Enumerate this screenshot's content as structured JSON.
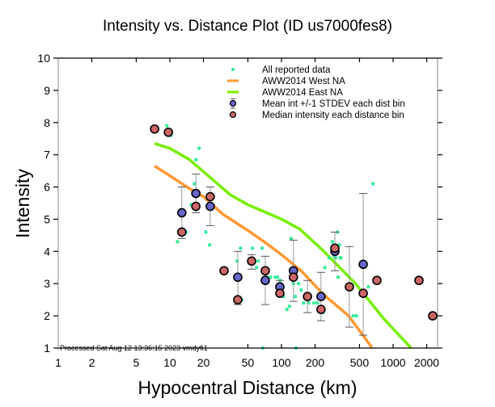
{
  "chart_data": {
    "type": "scatter",
    "title": "Intensity vs. Distance Plot (ID us7000fes8)",
    "xlabel": "Hypocentral Distance (km)",
    "ylabel": "Intensity",
    "xscale": "log",
    "xlim": [
      1,
      2650
    ],
    "ylim": [
      1,
      10
    ],
    "x_ticks": [
      1,
      2,
      5,
      10,
      20,
      50,
      100,
      200,
      500,
      1000,
      2000
    ],
    "x_tick_labels": [
      "1",
      "2",
      "5",
      "10",
      "20",
      "50",
      "100",
      "200",
      "500",
      "1000",
      "2000"
    ],
    "y_ticks": [
      1,
      2,
      3,
      4,
      5,
      6,
      7,
      8,
      9,
      10
    ],
    "y_tick_labels": [
      "1",
      "2",
      "3",
      "4",
      "5",
      "6",
      "7",
      "8",
      "9",
      "10"
    ],
    "grid": false,
    "legend_position": "top-right",
    "footer": "Processed Sat Aug 12 13:36:15 2023 vmdyfi1",
    "legend": [
      {
        "label": "All reported data",
        "kind": "dot",
        "color": "#33ee99"
      },
      {
        "label": "AWW2014 West NA",
        "kind": "line",
        "color": "#ff9933"
      },
      {
        "label": "AWW2014 East NA",
        "kind": "line",
        "color": "#77ee00"
      },
      {
        "label": "Mean int +/-1 STDEV each dist bin",
        "kind": "errorbar-marker",
        "color": "#6666cc"
      },
      {
        "label": "Median intensity each distance bin",
        "kind": "marker",
        "color": "#cc6666"
      }
    ],
    "series": [
      {
        "name": "AWW2014 West NA",
        "type": "line",
        "color": "#ff9933",
        "points": [
          [
            7.3,
            6.65
          ],
          [
            10,
            6.35
          ],
          [
            15,
            5.95
          ],
          [
            20,
            5.7
          ],
          [
            30,
            5.15
          ],
          [
            50,
            4.65
          ],
          [
            70,
            4.3
          ],
          [
            100,
            3.9
          ],
          [
            150,
            3.4
          ],
          [
            240,
            2.65
          ],
          [
            400,
            2.0
          ],
          [
            650,
            1.0
          ]
        ]
      },
      {
        "name": "AWW2014 East NA",
        "type": "line",
        "color": "#77ee00",
        "points": [
          [
            7.3,
            7.35
          ],
          [
            10,
            7.2
          ],
          [
            15,
            6.85
          ],
          [
            22,
            6.35
          ],
          [
            35,
            5.75
          ],
          [
            50,
            5.45
          ],
          [
            100,
            5.0
          ],
          [
            145,
            4.7
          ],
          [
            240,
            4.0
          ],
          [
            460,
            3.0
          ],
          [
            830,
            1.9
          ],
          [
            1450,
            1.0
          ]
        ]
      },
      {
        "name": "All reported data",
        "type": "scatter",
        "color": "#33ee99",
        "points": [
          [
            9.4,
            7.9
          ],
          [
            10.2,
            7.6
          ],
          [
            11.7,
            4.3
          ],
          [
            13,
            4.6
          ],
          [
            14,
            4.6
          ],
          [
            15.5,
            5.45
          ],
          [
            16.6,
            6.1
          ],
          [
            17.2,
            6.85
          ],
          [
            18.3,
            7.2
          ],
          [
            21,
            4.6
          ],
          [
            22.7,
            4.2
          ],
          [
            40,
            3.7
          ],
          [
            43,
            4.1
          ],
          [
            44,
            2.5
          ],
          [
            55,
            4.1
          ],
          [
            60,
            3.5
          ],
          [
            62,
            3.7
          ],
          [
            67,
            4.1
          ],
          [
            70,
            3.4
          ],
          [
            74,
            3.2
          ],
          [
            80,
            3.2
          ],
          [
            88,
            3.2
          ],
          [
            92,
            3.2
          ],
          [
            97,
            3.1
          ],
          [
            104,
            2.6
          ],
          [
            112,
            2.2
          ],
          [
            118,
            2.3
          ],
          [
            122,
            4.4
          ],
          [
            128,
            3.0
          ],
          [
            133,
            2.6
          ],
          [
            142,
            3.0
          ],
          [
            150,
            2.8
          ],
          [
            158,
            2.4
          ],
          [
            175,
            2.4
          ],
          [
            195,
            2.4
          ],
          [
            210,
            2.4
          ],
          [
            235,
            2.1
          ],
          [
            245,
            3.5
          ],
          [
            268,
            3.8
          ],
          [
            285,
            4.3
          ],
          [
            297,
            3.85
          ],
          [
            305,
            3.8
          ],
          [
            318,
            4.6
          ],
          [
            322,
            3.2
          ],
          [
            330,
            4.2
          ],
          [
            335,
            3.8
          ],
          [
            340,
            3.8
          ],
          [
            440,
            2.0
          ],
          [
            470,
            2.0
          ],
          [
            600,
            2.9
          ],
          [
            660,
            6.1
          ],
          [
            1600,
            3.1
          ],
          [
            68,
            1.0
          ],
          [
            135,
            1.0
          ]
        ]
      },
      {
        "name": "Mean int +/-1 STDEV each dist bin",
        "type": "errorbar",
        "color": "#6666cc",
        "points": [
          {
            "x": 12.8,
            "mean": 5.2,
            "low": 4.4,
            "high": 6.0
          },
          {
            "x": 17.1,
            "mean": 5.8,
            "low": 5.2,
            "high": 6.4
          },
          {
            "x": 23,
            "mean": 5.4,
            "low": 4.8,
            "high": 6.0
          },
          {
            "x": 40.6,
            "mean": 3.2,
            "low": 2.35,
            "high": 4.0
          },
          {
            "x": 71.6,
            "mean": 3.1,
            "low": 2.35,
            "high": 3.85
          },
          {
            "x": 96.7,
            "mean": 2.9,
            "low": 2.7,
            "high": 3.1
          },
          {
            "x": 128,
            "mean": 3.4,
            "low": 2.45,
            "high": 4.35
          },
          {
            "x": 226,
            "mean": 2.6,
            "low": 1.85,
            "high": 3.35
          },
          {
            "x": 301,
            "mean": 4.0,
            "low": 3.4,
            "high": 4.6
          },
          {
            "x": 540,
            "mean": 3.6,
            "low": 1.4,
            "high": 5.8
          }
        ]
      },
      {
        "name": "Median intensity each distance bin",
        "type": "scatter",
        "color": "#cc6666",
        "points": [
          [
            7.3,
            7.8
          ],
          [
            9.7,
            7.7
          ],
          [
            12.8,
            4.6
          ],
          [
            17.1,
            5.4
          ],
          [
            23,
            5.7
          ],
          [
            30.6,
            3.4
          ],
          [
            40.6,
            2.5
          ],
          [
            54,
            3.7
          ],
          [
            71.6,
            3.4
          ],
          [
            96.7,
            2.7
          ],
          [
            128,
            3.2
          ],
          [
            171,
            2.6
          ],
          [
            226,
            2.2
          ],
          [
            301,
            4.1
          ],
          [
            406,
            2.9
          ],
          [
            540,
            2.7
          ],
          [
            716,
            3.1
          ],
          [
            1706,
            3.1
          ],
          [
            2265,
            2.0
          ]
        ]
      },
      {
        "name": "Median-only error bars",
        "type": "errorbar-only",
        "color": "#999999",
        "points": [
          {
            "x": 54,
            "low": 3.45,
            "high": 3.9
          },
          {
            "x": 171,
            "low": 2.1,
            "high": 3.1
          },
          {
            "x": 406,
            "low": 1.65,
            "high": 4.15
          },
          {
            "x": 9.7,
            "low": 7.65,
            "high": 7.75
          }
        ]
      }
    ]
  }
}
